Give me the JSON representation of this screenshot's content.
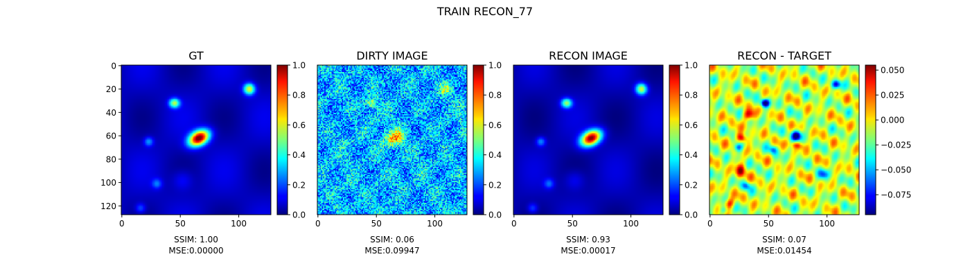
{
  "figure": {
    "suptitle": "TRAIN RECON_77"
  },
  "chart_data": [
    {
      "type": "heatmap",
      "title": "GT",
      "colormap": "jet",
      "image_size": 128,
      "x_ticks": [
        0,
        50,
        100
      ],
      "y_ticks": [
        0,
        20,
        40,
        60,
        80,
        100,
        120
      ],
      "colorbar": {
        "range": [
          0.0,
          1.0
        ],
        "ticks": [
          "0.0",
          "0.2",
          "0.4",
          "0.6",
          "0.8",
          "1.0"
        ]
      },
      "metrics": {
        "ssim": "SSIM: 1.00",
        "mse": "MSE:0.00000"
      }
    },
    {
      "type": "heatmap",
      "title": "DIRTY IMAGE",
      "colormap": "jet",
      "image_size": 128,
      "x_ticks": [
        0,
        50,
        100
      ],
      "colorbar": {
        "range": [
          0.0,
          1.0
        ],
        "ticks": [
          "0.0",
          "0.2",
          "0.4",
          "0.6",
          "0.8",
          "1.0"
        ]
      },
      "metrics": {
        "ssim": "SSIM: 0.06",
        "mse": "MSE:0.09947"
      }
    },
    {
      "type": "heatmap",
      "title": "RECON IMAGE",
      "colormap": "jet",
      "image_size": 128,
      "x_ticks": [
        0,
        50,
        100
      ],
      "colorbar": {
        "range": [
          0.0,
          1.0
        ],
        "ticks": [
          "0.0",
          "0.2",
          "0.4",
          "0.6",
          "0.8",
          "1.0"
        ]
      },
      "metrics": {
        "ssim": "SSIM: 0.93",
        "mse": "MSE:0.00017"
      }
    },
    {
      "type": "heatmap",
      "title": "RECON - TARGET",
      "colormap": "jet",
      "image_size": 128,
      "x_ticks": [
        0,
        50,
        100
      ],
      "colorbar": {
        "range": [
          -0.095,
          0.055
        ],
        "ticks": [
          "0.050",
          "0.025",
          "0.000",
          "−0.025",
          "−0.050",
          "−0.075"
        ]
      },
      "metrics": {
        "ssim": "SSIM: 0.07",
        "mse": "MSE:0.01454"
      }
    }
  ]
}
